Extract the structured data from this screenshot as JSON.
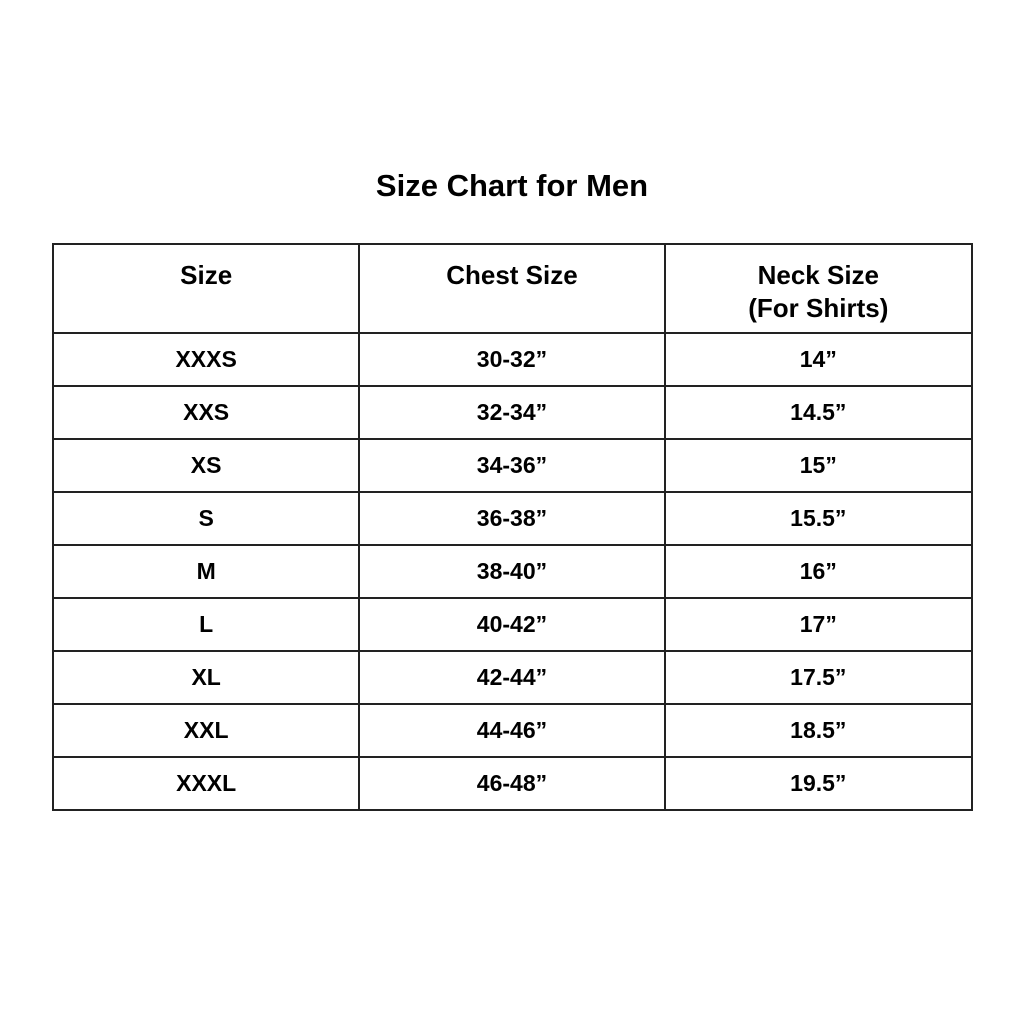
{
  "title": "Size Chart for Men",
  "headers": {
    "size": "Size",
    "chest": "Chest Size",
    "neck": "Neck Size",
    "neck_sub": "(For Shirts)"
  },
  "rows": [
    {
      "size": "XXXS",
      "chest": "30-32”",
      "neck": "14”"
    },
    {
      "size": "XXS",
      "chest": "32-34”",
      "neck": "14.5”"
    },
    {
      "size": "XS",
      "chest": "34-36”",
      "neck": "15”"
    },
    {
      "size": "S",
      "chest": "36-38”",
      "neck": "15.5”"
    },
    {
      "size": "M",
      "chest": "38-40”",
      "neck": "16”"
    },
    {
      "size": "L",
      "chest": "40-42”",
      "neck": "17”"
    },
    {
      "size": "XL",
      "chest": "42-44”",
      "neck": "17.5”"
    },
    {
      "size": "XXL",
      "chest": "44-46”",
      "neck": "18.5”"
    },
    {
      "size": "XXXL",
      "chest": "46-48”",
      "neck": "19.5”"
    }
  ]
}
